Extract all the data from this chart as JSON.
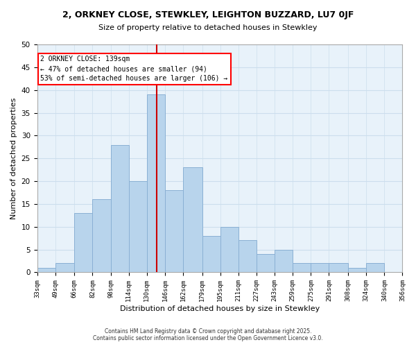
{
  "title": "2, ORKNEY CLOSE, STEWKLEY, LEIGHTON BUZZARD, LU7 0JF",
  "subtitle": "Size of property relative to detached houses in Stewkley",
  "xlabel": "Distribution of detached houses by size in Stewkley",
  "ylabel": "Number of detached properties",
  "bar_color": "#b8d4ec",
  "bar_edge_color": "#8ab0d4",
  "grid_color": "#ccdeed",
  "vline_x": 139,
  "vline_color": "#cc0000",
  "annotation_title": "2 ORKNEY CLOSE: 139sqm",
  "annotation_line1": "← 47% of detached houses are smaller (94)",
  "annotation_line2": "53% of semi-detached houses are larger (106) →",
  "bin_edges": [
    33,
    49,
    66,
    82,
    98,
    114,
    130,
    146,
    162,
    179,
    195,
    211,
    227,
    243,
    259,
    275,
    291,
    308,
    324,
    340,
    356
  ],
  "bin_counts": [
    1,
    2,
    13,
    16,
    28,
    20,
    39,
    18,
    23,
    8,
    10,
    7,
    4,
    5,
    2,
    2,
    2,
    1,
    2,
    0
  ],
  "tick_labels": [
    "33sqm",
    "49sqm",
    "66sqm",
    "82sqm",
    "98sqm",
    "114sqm",
    "130sqm",
    "146sqm",
    "162sqm",
    "179sqm",
    "195sqm",
    "211sqm",
    "227sqm",
    "243sqm",
    "259sqm",
    "275sqm",
    "291sqm",
    "308sqm",
    "324sqm",
    "340sqm",
    "356sqm"
  ],
  "ylim": [
    0,
    50
  ],
  "yticks": [
    0,
    5,
    10,
    15,
    20,
    25,
    30,
    35,
    40,
    45,
    50
  ],
  "footer_line1": "Contains HM Land Registry data © Crown copyright and database right 2025.",
  "footer_line2": "Contains public sector information licensed under the Open Government Licence v3.0.",
  "background_color": "#ffffff",
  "axes_bg_color": "#e8f2fa"
}
